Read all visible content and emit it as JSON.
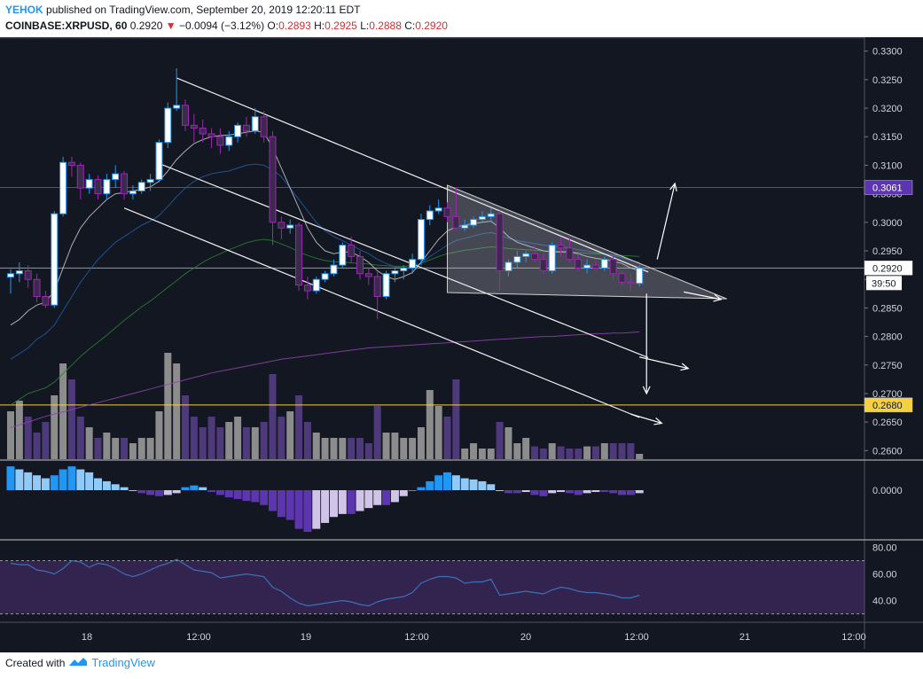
{
  "header": {
    "user": "YEHOK",
    "published_text": "published on TradingView.com, September 20, 2019 12:20:11 EDT",
    "symbol": "COINBASE:XRPUSD, 60",
    "last": "0.2920",
    "change": "−0.0094 (−3.12%)",
    "o_label": "O:",
    "o": "0.2893",
    "h_label": "H:",
    "h": "0.2925",
    "l_label": "L:",
    "l": "0.2888",
    "c_label": "C:",
    "c": "0.2920"
  },
  "footer": {
    "created_with": "Created with",
    "brand": "TradingView"
  },
  "colors": {
    "background": "#131722",
    "bull_body": "#ffffff",
    "bull_wick": "#2196f3",
    "bear_body": "#3a2a4c",
    "bear_wick": "#9c27b0",
    "volume_up": "#8c8c8c",
    "volume_down": "#4e3a7a",
    "resistance": "#673ab7",
    "support": "#f5d042",
    "macd_pos": "#4a9ae8",
    "macd_neg": "#7c4dbd",
    "rsi_line": "#3d6fb8",
    "rsi_band": "#4a2c6e"
  },
  "chart_data": [
    {
      "panel": "price",
      "type": "candlestick",
      "y_ticks": [
        "0.3300",
        "0.3250",
        "0.3200",
        "0.3150",
        "0.3100",
        "0.3050",
        "0.3000",
        "0.2950",
        "0.2900",
        "0.2850",
        "0.2800",
        "0.2750",
        "0.2700",
        "0.2650",
        "0.2600"
      ],
      "ylim": [
        0.2585,
        0.3315
      ],
      "x_ticks": [
        "18",
        "12:00",
        "19",
        "12:00",
        "20",
        "12:00",
        "21",
        "12:00"
      ],
      "price_labels": [
        {
          "value": 0.3061,
          "text": "0.3061",
          "kind": "resistance"
        },
        {
          "value": 0.292,
          "text": "0.2920",
          "kind": "last"
        },
        {
          "value": 0.268,
          "text": "0.2680",
          "kind": "support"
        }
      ],
      "countdown": "39:50",
      "horizontal_lines": [
        0.3061,
        0.292,
        0.268
      ],
      "candles": [
        [
          0.2904,
          0.2918,
          0.2875,
          0.291
        ],
        [
          0.291,
          0.293,
          0.2895,
          0.2915
        ],
        [
          0.2915,
          0.2925,
          0.2885,
          0.29
        ],
        [
          0.29,
          0.291,
          0.286,
          0.287
        ],
        [
          0.287,
          0.288,
          0.285,
          0.2855
        ],
        [
          0.2855,
          0.302,
          0.285,
          0.3015
        ],
        [
          0.3015,
          0.3115,
          0.301,
          0.3105
        ],
        [
          0.3105,
          0.3115,
          0.308,
          0.31
        ],
        [
          0.31,
          0.3105,
          0.304,
          0.306
        ],
        [
          0.306,
          0.3085,
          0.305,
          0.3075
        ],
        [
          0.3075,
          0.3082,
          0.304,
          0.305
        ],
        [
          0.305,
          0.3085,
          0.304,
          0.3075
        ],
        [
          0.3075,
          0.31,
          0.306,
          0.3085
        ],
        [
          0.3085,
          0.309,
          0.304,
          0.305
        ],
        [
          0.305,
          0.3065,
          0.304,
          0.3055
        ],
        [
          0.3055,
          0.3075,
          0.305,
          0.307
        ],
        [
          0.307,
          0.3085,
          0.3055,
          0.3075
        ],
        [
          0.3075,
          0.3145,
          0.307,
          0.314
        ],
        [
          0.314,
          0.321,
          0.313,
          0.32
        ],
        [
          0.32,
          0.327,
          0.3195,
          0.3205
        ],
        [
          0.3205,
          0.3215,
          0.316,
          0.317
        ],
        [
          0.317,
          0.319,
          0.314,
          0.3165
        ],
        [
          0.3165,
          0.318,
          0.314,
          0.3155
        ],
        [
          0.3155,
          0.3165,
          0.313,
          0.315
        ],
        [
          0.315,
          0.3165,
          0.312,
          0.3135
        ],
        [
          0.3135,
          0.316,
          0.3125,
          0.315
        ],
        [
          0.315,
          0.3175,
          0.314,
          0.317
        ],
        [
          0.317,
          0.3185,
          0.315,
          0.316
        ],
        [
          0.316,
          0.32,
          0.3155,
          0.3185
        ],
        [
          0.3185,
          0.3195,
          0.314,
          0.315
        ],
        [
          0.315,
          0.316,
          0.296,
          0.3
        ],
        [
          0.3,
          0.301,
          0.297,
          0.299
        ],
        [
          0.299,
          0.3005,
          0.298,
          0.2995
        ],
        [
          0.2995,
          0.3,
          0.288,
          0.289
        ],
        [
          0.289,
          0.2905,
          0.2865,
          0.288
        ],
        [
          0.288,
          0.2905,
          0.2875,
          0.29
        ],
        [
          0.29,
          0.2915,
          0.2895,
          0.291
        ],
        [
          0.291,
          0.2935,
          0.2905,
          0.2925
        ],
        [
          0.2925,
          0.2965,
          0.292,
          0.296
        ],
        [
          0.296,
          0.2975,
          0.293,
          0.294
        ],
        [
          0.294,
          0.295,
          0.29,
          0.291
        ],
        [
          0.291,
          0.292,
          0.289,
          0.2905
        ],
        [
          0.2905,
          0.2915,
          0.283,
          0.287
        ],
        [
          0.287,
          0.2915,
          0.2865,
          0.291
        ],
        [
          0.291,
          0.292,
          0.2895,
          0.2915
        ],
        [
          0.2915,
          0.2925,
          0.29,
          0.292
        ],
        [
          0.292,
          0.2945,
          0.291,
          0.2935
        ],
        [
          0.2935,
          0.3015,
          0.2925,
          0.3005
        ],
        [
          0.3005,
          0.303,
          0.2995,
          0.302
        ],
        [
          0.302,
          0.304,
          0.3015,
          0.3025
        ],
        [
          0.3025,
          0.3035,
          0.3,
          0.301
        ],
        [
          0.301,
          0.306,
          0.2985,
          0.299
        ],
        [
          0.299,
          0.3005,
          0.2985,
          0.2995
        ],
        [
          0.2995,
          0.301,
          0.299,
          0.3005
        ],
        [
          0.3005,
          0.302,
          0.3,
          0.301
        ],
        [
          0.301,
          0.3025,
          0.3,
          0.3015
        ],
        [
          0.3015,
          0.302,
          0.288,
          0.2915
        ],
        [
          0.2915,
          0.2935,
          0.2905,
          0.293
        ],
        [
          0.293,
          0.295,
          0.292,
          0.294
        ],
        [
          0.294,
          0.295,
          0.293,
          0.2945
        ],
        [
          0.2945,
          0.296,
          0.293,
          0.2935
        ],
        [
          0.2935,
          0.2945,
          0.291,
          0.2915
        ],
        [
          0.2915,
          0.2965,
          0.291,
          0.296
        ],
        [
          0.296,
          0.2975,
          0.294,
          0.2955
        ],
        [
          0.2955,
          0.2975,
          0.293,
          0.2935
        ],
        [
          0.2935,
          0.2945,
          0.2915,
          0.292
        ],
        [
          0.292,
          0.2935,
          0.291,
          0.2925
        ],
        [
          0.2925,
          0.2935,
          0.2915,
          0.292
        ],
        [
          0.292,
          0.294,
          0.2915,
          0.2935
        ],
        [
          0.2935,
          0.2945,
          0.29,
          0.291
        ],
        [
          0.291,
          0.2915,
          0.289,
          0.2895
        ],
        [
          0.2895,
          0.291,
          0.288,
          0.2893
        ],
        [
          0.2893,
          0.2925,
          0.2888,
          0.292
        ]
      ],
      "ma_short": [
        0.282,
        0.283,
        0.2845,
        0.2855,
        0.286,
        0.288,
        0.292,
        0.296,
        0.299,
        0.301,
        0.3025,
        0.304,
        0.305,
        0.3052,
        0.3055,
        0.3058,
        0.3062,
        0.3072,
        0.309,
        0.311,
        0.3125,
        0.3138,
        0.3145,
        0.315,
        0.3152,
        0.3153,
        0.3155,
        0.3158,
        0.316,
        0.3158,
        0.313,
        0.3095,
        0.306,
        0.3025,
        0.299,
        0.2965,
        0.295,
        0.2945,
        0.2948,
        0.2948,
        0.294,
        0.293,
        0.2915,
        0.2905,
        0.29,
        0.2905,
        0.2912,
        0.293,
        0.295,
        0.297,
        0.2985,
        0.2992,
        0.2995,
        0.2998,
        0.3,
        0.3002,
        0.299,
        0.2975,
        0.2965,
        0.296,
        0.2955,
        0.295,
        0.2948,
        0.2948,
        0.2948,
        0.2945,
        0.294,
        0.2937,
        0.2935,
        0.2932,
        0.2928,
        0.292,
        0.2915
      ],
      "ma_mid": [
        0.276,
        0.277,
        0.278,
        0.2795,
        0.2805,
        0.282,
        0.2845,
        0.287,
        0.2895,
        0.2915,
        0.2935,
        0.295,
        0.2965,
        0.2975,
        0.2985,
        0.2995,
        0.3002,
        0.3012,
        0.3028,
        0.3045,
        0.306,
        0.3072,
        0.308,
        0.3085,
        0.3088,
        0.309,
        0.3095,
        0.31,
        0.3102,
        0.31,
        0.3092,
        0.308,
        0.306,
        0.304,
        0.302,
        0.3,
        0.2985,
        0.2975,
        0.2968,
        0.296,
        0.2952,
        0.2945,
        0.2935,
        0.2928,
        0.2922,
        0.292,
        0.292,
        0.2928,
        0.294,
        0.295,
        0.296,
        0.2968,
        0.2972,
        0.2976,
        0.298,
        0.2982,
        0.2978,
        0.2972,
        0.2968,
        0.2965,
        0.2963,
        0.296,
        0.2958,
        0.2957,
        0.2955,
        0.2952,
        0.295,
        0.2947,
        0.2945,
        0.2942,
        0.2938,
        0.2933,
        0.293
      ],
      "ma_long": [
        0.268,
        0.269,
        0.27,
        0.2705,
        0.271,
        0.272,
        0.2735,
        0.275,
        0.2765,
        0.2778,
        0.279,
        0.2802,
        0.2815,
        0.2828,
        0.284,
        0.2852,
        0.2862,
        0.2874,
        0.2886,
        0.2898,
        0.291,
        0.292,
        0.293,
        0.2938,
        0.2945,
        0.2952,
        0.2958,
        0.2964,
        0.2968,
        0.297,
        0.2968,
        0.2962,
        0.2956,
        0.2948,
        0.2942,
        0.2937,
        0.2933,
        0.2931,
        0.293,
        0.2929,
        0.2928,
        0.2927,
        0.2925,
        0.2924,
        0.2923,
        0.2923,
        0.2924,
        0.2928,
        0.2934,
        0.294,
        0.2945,
        0.2948,
        0.2951,
        0.2953,
        0.2955,
        0.2957,
        0.2956,
        0.2954,
        0.2953,
        0.2952,
        0.2951,
        0.295,
        0.2949,
        0.2949,
        0.2948,
        0.2947,
        0.2946,
        0.2945,
        0.2944,
        0.2943,
        0.2942,
        0.2941,
        0.294
      ],
      "ma_very_long": [
        0.264,
        0.2645,
        0.265,
        0.2655,
        0.266,
        0.2664,
        0.2668,
        0.2672,
        0.2676,
        0.268,
        0.2684,
        0.2688,
        0.2692,
        0.2696,
        0.27,
        0.2704,
        0.2708,
        0.2712,
        0.2716,
        0.272,
        0.2724,
        0.2728,
        0.2732,
        0.2736,
        0.2739,
        0.2742,
        0.2745,
        0.2748,
        0.2751,
        0.2754,
        0.2757,
        0.276,
        0.2762,
        0.2764,
        0.2766,
        0.2768,
        0.277,
        0.2772,
        0.2774,
        0.2776,
        0.2778,
        0.278,
        0.2781,
        0.2782,
        0.2783,
        0.2784,
        0.2785,
        0.2786,
        0.2787,
        0.2788,
        0.2789,
        0.279,
        0.2791,
        0.2792,
        0.2793,
        0.2794,
        0.2795,
        0.2796,
        0.2797,
        0.2798,
        0.2799,
        0.28,
        0.28,
        0.2801,
        0.2802,
        0.2803,
        0.2804,
        0.2805,
        0.2805,
        0.2806,
        0.2806,
        0.2807,
        0.2808
      ],
      "volume": [
        0.45,
        0.55,
        0.4,
        0.25,
        0.35,
        0.6,
        0.9,
        0.75,
        0.4,
        0.3,
        0.2,
        0.25,
        0.2,
        0.2,
        0.15,
        0.2,
        0.2,
        0.45,
        1.0,
        0.9,
        0.6,
        0.4,
        0.3,
        0.4,
        0.3,
        0.35,
        0.4,
        0.3,
        0.3,
        0.35,
        0.8,
        0.4,
        0.45,
        0.6,
        0.35,
        0.25,
        0.2,
        0.2,
        0.2,
        0.2,
        0.2,
        0.15,
        0.5,
        0.25,
        0.25,
        0.2,
        0.2,
        0.3,
        0.65,
        0.5,
        0.4,
        0.75,
        0.1,
        0.15,
        0.1,
        0.1,
        0.35,
        0.3,
        0.15,
        0.2,
        0.12,
        0.1,
        0.15,
        0.12,
        0.1,
        0.1,
        0.12,
        0.12,
        0.15,
        0.15,
        0.15,
        0.15,
        0.05
      ],
      "channels": [
        {
          "from": [
            19,
            0.3253
          ],
          "to": [
            73,
            0.2913
          ]
        },
        {
          "from": [
            17,
            0.3103
          ],
          "to": [
            73,
            0.2763
          ]
        },
        {
          "from": [
            13,
            0.3025
          ],
          "to": [
            72,
            0.2658
          ]
        }
      ],
      "triangle": [
        [
          50,
          0.3065
        ],
        [
          50,
          0.2877
        ],
        [
          82,
          0.2866
        ]
      ]
    },
    {
      "panel": "macd",
      "type": "histogram",
      "y_ticks": [
        "0.0000"
      ],
      "values": [
        0.004,
        0.0035,
        0.003,
        0.0025,
        0.002,
        0.0025,
        0.0035,
        0.004,
        0.0035,
        0.003,
        0.002,
        0.0015,
        0.001,
        0.0005,
        0,
        -0.0005,
        -0.0008,
        -0.001,
        -0.0008,
        -0.0005,
        0.0005,
        0.0008,
        0.0005,
        -0.0003,
        -0.0008,
        -0.0012,
        -0.0015,
        -0.0018,
        -0.002,
        -0.0025,
        -0.0035,
        -0.0045,
        -0.005,
        -0.0065,
        -0.007,
        -0.0065,
        -0.0055,
        -0.0045,
        -0.004,
        -0.004,
        -0.0035,
        -0.003,
        -0.0025,
        -0.0025,
        -0.002,
        -0.001,
        0,
        0.0005,
        0.0015,
        0.0025,
        0.003,
        0.0025,
        0.002,
        0.0018,
        0.0015,
        0.001,
        0,
        -0.0005,
        -0.0005,
        -0.0003,
        -0.0008,
        -0.001,
        -0.0005,
        -0.0003,
        -0.0005,
        -0.0008,
        -0.0005,
        -0.0003,
        -0.0003,
        -0.0005,
        -0.0008,
        -0.0008,
        -0.0005
      ]
    },
    {
      "panel": "rsi",
      "type": "line",
      "y_ticks": [
        "80.00",
        "60.00",
        "40.00"
      ],
      "ylim": [
        25,
        85
      ],
      "band": [
        30,
        70
      ],
      "values": [
        68,
        67,
        67,
        63,
        62,
        60,
        64,
        70,
        69,
        65,
        68,
        67,
        64,
        60,
        58,
        60,
        63,
        66,
        68,
        71,
        67,
        63,
        62,
        61,
        57,
        58,
        59,
        60,
        59,
        58,
        50,
        47,
        42,
        38,
        36,
        37,
        38,
        39,
        40,
        39,
        37,
        36,
        39,
        41,
        42,
        43,
        46,
        53,
        56,
        58,
        58,
        57,
        53,
        54,
        54,
        56,
        44,
        45,
        46,
        47,
        46,
        45,
        48,
        50,
        49,
        47,
        46,
        46,
        45,
        44,
        42,
        42,
        44
      ]
    }
  ]
}
